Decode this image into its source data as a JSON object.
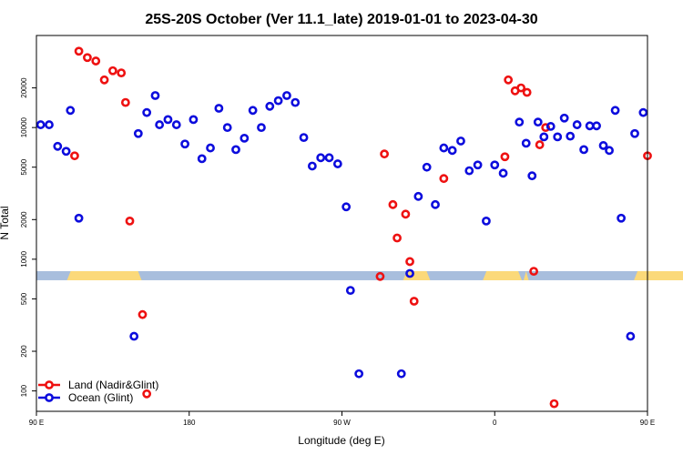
{
  "chart_data": {
    "type": "scatter",
    "title": "25S-20S October (Ver 11.1_late)   2019-01-01 to 2023-04-30",
    "xlabel": "Longitude (deg E)",
    "ylabel": "N Total",
    "x_range": [
      90,
      450
    ],
    "y_range": [
      70,
      50000
    ],
    "y_scale": "log",
    "x_ticks": [
      {
        "value": 90,
        "label": "90 E"
      },
      {
        "value": 180,
        "label": "180"
      },
      {
        "value": 270,
        "label": "90 W"
      },
      {
        "value": 360,
        "label": "0"
      },
      {
        "value": 450,
        "label": "90 E"
      },
      {
        "value": 540,
        "label": "180"
      }
    ],
    "y_ticks": [
      {
        "value": 100,
        "label": "100"
      },
      {
        "value": 200,
        "label": "200"
      },
      {
        "value": 500,
        "label": "500"
      },
      {
        "value": 1000,
        "label": "1000"
      },
      {
        "value": 2000,
        "label": "2000"
      },
      {
        "value": 5000,
        "label": "5000"
      },
      {
        "value": 10000,
        "label": "10000"
      },
      {
        "value": 20000,
        "label": "20000"
      }
    ],
    "land_band": {
      "y_value": 750,
      "ocean_color": "#a8bedd",
      "land_color": "#fbd97a",
      "land_ranges": [
        [
          112,
          146
        ],
        [
          140,
          152
        ],
        [
          108,
          118
        ],
        [
          306,
          322
        ],
        [
          353,
          376
        ],
        [
          377,
          380
        ],
        [
          442,
          486
        ],
        [
          480,
          492
        ]
      ]
    },
    "legend_position": "bottom-left",
    "series": [
      {
        "name": "Land (Nadir&Glint)",
        "color": "#ee1111",
        "points": [
          [
            112.5,
            6100
          ],
          [
            115,
            38000
          ],
          [
            120,
            34000
          ],
          [
            125,
            32000
          ],
          [
            130,
            23000
          ],
          [
            135,
            27000
          ],
          [
            140,
            26000
          ],
          [
            142.5,
            15500
          ],
          [
            145,
            1950
          ],
          [
            152.5,
            380
          ],
          [
            155,
            95
          ],
          [
            292.5,
            740
          ],
          [
            295,
            6300
          ],
          [
            300,
            2600
          ],
          [
            302.5,
            1450
          ],
          [
            307.5,
            2200
          ],
          [
            310,
            960
          ],
          [
            312.5,
            480
          ],
          [
            330,
            4100
          ],
          [
            366,
            6000
          ],
          [
            368,
            23000
          ],
          [
            372,
            19000
          ],
          [
            375.5,
            20000
          ],
          [
            379,
            18500
          ],
          [
            383,
            810
          ],
          [
            386.5,
            7400
          ],
          [
            390,
            10000
          ],
          [
            395,
            80
          ],
          [
            450,
            6100
          ],
          [
            452.5,
            38000
          ],
          [
            457.5,
            34000
          ],
          [
            462.5,
            32000
          ],
          [
            467.5,
            23000
          ],
          [
            472.5,
            27000
          ],
          [
            477.5,
            26000
          ],
          [
            480,
            15500
          ],
          [
            482.5,
            1950
          ],
          [
            490,
            380
          ],
          [
            492.5,
            95
          ]
        ]
      },
      {
        "name": "Ocean (Glint)",
        "color": "#0c0cdd",
        "points": [
          [
            92.5,
            10500
          ],
          [
            97.5,
            10500
          ],
          [
            102.5,
            7200
          ],
          [
            107.5,
            6600
          ],
          [
            110,
            13500
          ],
          [
            115,
            2050
          ],
          [
            147.5,
            260
          ],
          [
            150,
            9000
          ],
          [
            155,
            13000
          ],
          [
            160,
            17500
          ],
          [
            162.5,
            10500
          ],
          [
            167.5,
            11500
          ],
          [
            172.5,
            10500
          ],
          [
            177.5,
            7500
          ],
          [
            182.5,
            11500
          ],
          [
            187.5,
            5800
          ],
          [
            192.5,
            7000
          ],
          [
            197.5,
            14000
          ],
          [
            202.5,
            10000
          ],
          [
            207.5,
            6800
          ],
          [
            212.5,
            8300
          ],
          [
            217.5,
            13500
          ],
          [
            222.5,
            10000
          ],
          [
            227.5,
            14500
          ],
          [
            232.5,
            16000
          ],
          [
            237.5,
            17500
          ],
          [
            242.5,
            15500
          ],
          [
            247.5,
            8400
          ],
          [
            252.5,
            5100
          ],
          [
            257.5,
            5900
          ],
          [
            262.5,
            5900
          ],
          [
            267.5,
            5300
          ],
          [
            272.5,
            2500
          ],
          [
            275,
            580
          ],
          [
            280,
            135
          ],
          [
            305,
            135
          ],
          [
            310,
            780
          ],
          [
            315,
            3000
          ],
          [
            320,
            5000
          ],
          [
            325,
            2600
          ],
          [
            330,
            7000
          ],
          [
            335,
            6700
          ],
          [
            340,
            7900
          ],
          [
            345,
            4700
          ],
          [
            350,
            5200
          ],
          [
            355,
            1950
          ],
          [
            360,
            5200
          ],
          [
            365,
            4500
          ],
          [
            374.5,
            11000
          ],
          [
            378.5,
            7600
          ],
          [
            382,
            4300
          ],
          [
            385.5,
            11000
          ],
          [
            389,
            8500
          ],
          [
            393,
            10200
          ],
          [
            397,
            8500
          ],
          [
            401,
            11800
          ],
          [
            404.5,
            8600
          ],
          [
            408.5,
            10500
          ],
          [
            412.5,
            6800
          ],
          [
            416,
            10300
          ],
          [
            420,
            10300
          ],
          [
            424,
            7300
          ],
          [
            427.5,
            6700
          ],
          [
            431,
            13500
          ],
          [
            434.5,
            2050
          ],
          [
            440,
            260
          ],
          [
            442.5,
            9000
          ],
          [
            447.5,
            13000
          ],
          [
            452.5,
            17500
          ],
          [
            455,
            10500
          ],
          [
            460,
            11500
          ],
          [
            465,
            10500
          ]
        ]
      }
    ]
  }
}
